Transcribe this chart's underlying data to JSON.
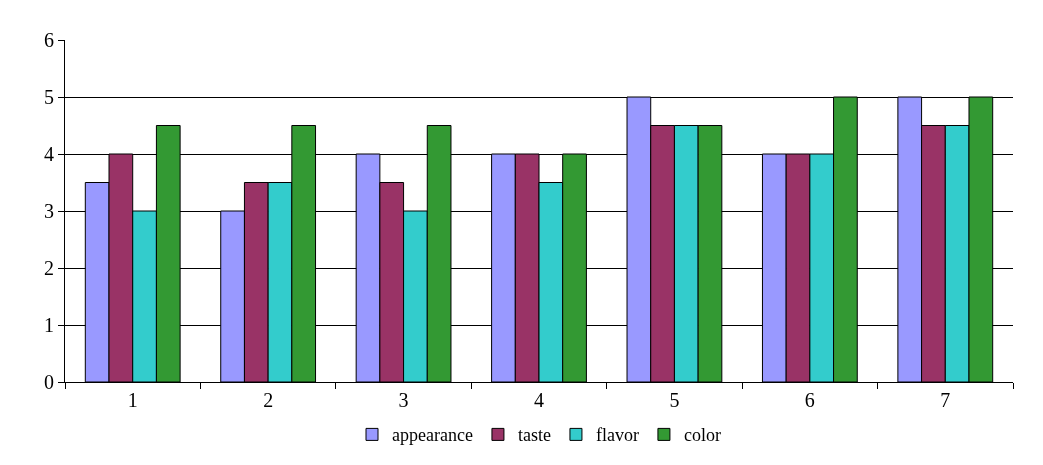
{
  "chart_data": {
    "type": "bar",
    "categories": [
      "1",
      "2",
      "3",
      "4",
      "5",
      "6",
      "7"
    ],
    "series": [
      {
        "name": "appearance",
        "color": "#9999ff",
        "values": [
          3.5,
          3,
          4,
          4,
          5,
          4,
          5
        ]
      },
      {
        "name": "taste",
        "color": "#993366",
        "values": [
          4,
          3.5,
          3.5,
          4,
          4.5,
          4,
          4.5
        ]
      },
      {
        "name": "flavor",
        "color": "#33cccc",
        "values": [
          3,
          3.5,
          3,
          3.5,
          4.5,
          4,
          4.5
        ]
      },
      {
        "name": "color",
        "color": "#339933",
        "values": [
          4.5,
          4.5,
          4.5,
          4,
          4.5,
          5,
          5
        ]
      }
    ],
    "ylim": [
      0,
      6
    ],
    "yticks": [
      0,
      1,
      2,
      3,
      4,
      5,
      6
    ],
    "grid": "y",
    "legend": "bottom"
  }
}
